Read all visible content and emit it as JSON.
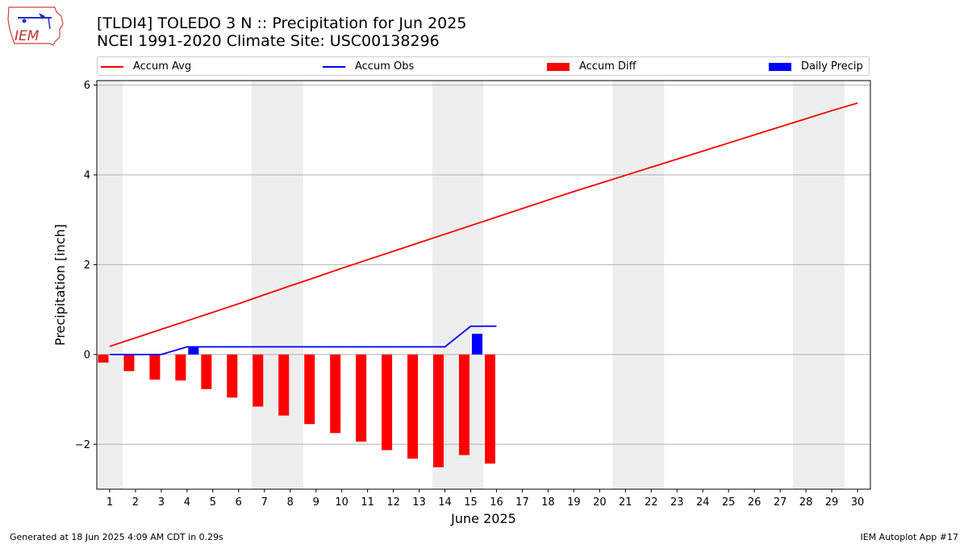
{
  "logo": {
    "text": "IEM",
    "icon": "iowa-state-outline-icon"
  },
  "title_line1": "[TLDI4] TOLEDO 3 N :: Precipitation for Jun 2025",
  "title_line2": "NCEI 1991-2020 Climate Site: USC00138296",
  "footer_left": "Generated at 18 Jun 2025 4:09 AM CDT in 0.29s",
  "footer_right": "IEM Autoplot App #17",
  "legend": {
    "items": [
      {
        "label": "Accum Avg",
        "color": "#ff0000",
        "kind": "line"
      },
      {
        "label": "Accum Obs",
        "color": "#0000ff",
        "kind": "line"
      },
      {
        "label": "Accum Diff",
        "color": "#ff0000",
        "kind": "bar"
      },
      {
        "label": "Daily Precip",
        "color": "#0000ff",
        "kind": "bar"
      }
    ]
  },
  "chart_data": {
    "type": "bar",
    "xlabel": "June 2025",
    "ylabel": "Precipitation [inch]",
    "xlim": [
      0.5,
      30.5
    ],
    "ylim": [
      -3.0,
      6.1
    ],
    "yticks": [
      -2,
      0,
      2,
      4,
      6
    ],
    "ytick_labels": [
      "−2",
      "0",
      "2",
      "4",
      "6"
    ],
    "xticks": [
      1,
      2,
      3,
      4,
      5,
      6,
      7,
      8,
      9,
      10,
      11,
      12,
      13,
      14,
      15,
      16,
      17,
      18,
      19,
      20,
      21,
      22,
      23,
      24,
      25,
      26,
      27,
      28,
      29,
      30
    ],
    "grid": "horizontal",
    "weekend_shading": [
      [
        0.5,
        1.5
      ],
      [
        6.5,
        8.5
      ],
      [
        13.5,
        15.5
      ],
      [
        20.5,
        22.5
      ],
      [
        27.5,
        29.5
      ]
    ],
    "shading_color": "#eeeeee",
    "series": [
      {
        "name": "Accum Avg",
        "type": "line",
        "color": "#ff0000",
        "x": [
          1,
          2,
          3,
          4,
          5,
          6,
          7,
          8,
          9,
          10,
          11,
          12,
          13,
          14,
          15,
          16,
          17,
          18,
          19,
          20,
          21,
          22,
          23,
          24,
          25,
          26,
          27,
          28,
          29,
          30
        ],
        "values": [
          0.18,
          0.37,
          0.56,
          0.75,
          0.94,
          1.13,
          1.33,
          1.53,
          1.72,
          1.92,
          2.11,
          2.3,
          2.49,
          2.68,
          2.87,
          3.06,
          3.25,
          3.44,
          3.63,
          3.81,
          3.99,
          4.17,
          4.35,
          4.53,
          4.71,
          4.89,
          5.07,
          5.25,
          5.43,
          5.6
        ]
      },
      {
        "name": "Accum Obs",
        "type": "line",
        "color": "#0000ff",
        "x": [
          1,
          2,
          3,
          4,
          5,
          6,
          7,
          8,
          9,
          10,
          11,
          12,
          13,
          14,
          15,
          16
        ],
        "values": [
          0.0,
          0.0,
          0.0,
          0.17,
          0.17,
          0.17,
          0.17,
          0.17,
          0.17,
          0.17,
          0.17,
          0.17,
          0.17,
          0.17,
          0.63,
          0.63
        ]
      },
      {
        "name": "Accum Diff",
        "type": "bar",
        "color": "#ff0000",
        "x": [
          1,
          2,
          3,
          4,
          5,
          6,
          7,
          8,
          9,
          10,
          11,
          12,
          13,
          14,
          15,
          16
        ],
        "values": [
          -0.18,
          -0.37,
          -0.56,
          -0.58,
          -0.77,
          -0.96,
          -1.16,
          -1.36,
          -1.55,
          -1.75,
          -1.94,
          -2.13,
          -2.32,
          -2.51,
          -2.24,
          -2.43
        ]
      },
      {
        "name": "Daily Precip",
        "type": "bar",
        "color": "#0000ff",
        "x": [
          4,
          15
        ],
        "values": [
          0.17,
          0.46
        ]
      }
    ]
  }
}
